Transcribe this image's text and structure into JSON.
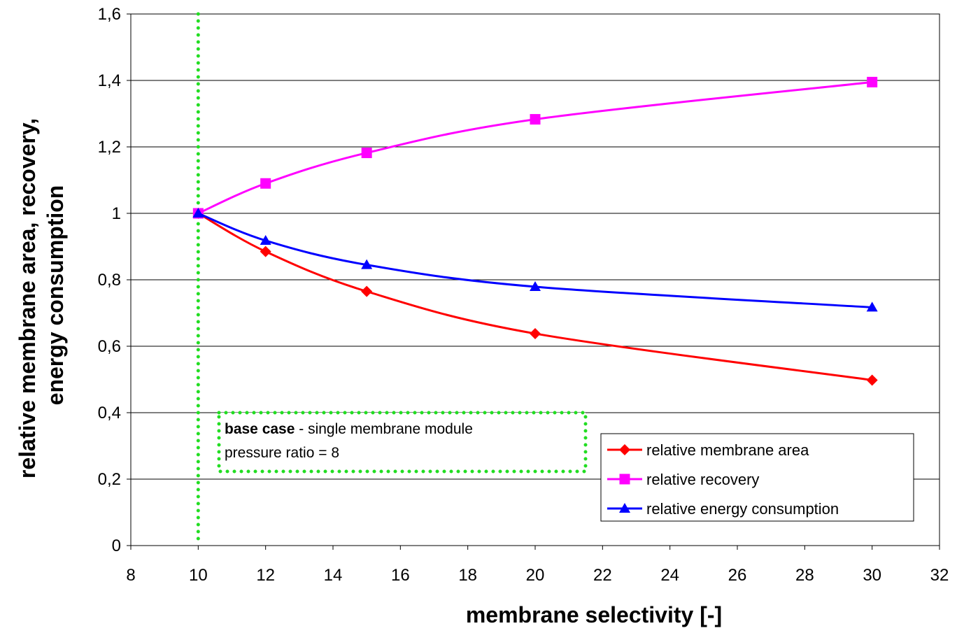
{
  "chart_data": {
    "type": "line",
    "title": "",
    "xlabel": "membrane selectivity [-]",
    "ylabel_lines": [
      "relative membrane area, recovery,",
      "energy consumption"
    ],
    "xlim": [
      8,
      32
    ],
    "ylim": [
      0,
      1.6
    ],
    "x_ticks": [
      "8",
      "10",
      "12",
      "14",
      "16",
      "18",
      "20",
      "22",
      "24",
      "26",
      "28",
      "30",
      "32"
    ],
    "y_ticks": [
      "0",
      "0,2",
      "0,4",
      "0,6",
      "0,8",
      "1",
      "1,2",
      "1,4",
      "1,6"
    ],
    "grid": "horizontal",
    "legend_position": "bottom-right",
    "series": [
      {
        "name": "relative membrane area",
        "color": "#ff0000",
        "marker": "diamond",
        "x": [
          10,
          12,
          15,
          20,
          30
        ],
        "y": [
          1.0,
          0.885,
          0.765,
          0.638,
          0.498
        ]
      },
      {
        "name": "relative recovery",
        "color": "#ff00ff",
        "marker": "square",
        "x": [
          10,
          12,
          15,
          20,
          30
        ],
        "y": [
          1.0,
          1.09,
          1.182,
          1.283,
          1.395
        ]
      },
      {
        "name": "relative energy consumption",
        "color": "#0000ff",
        "marker": "triangle",
        "x": [
          10,
          12,
          15,
          20,
          30
        ],
        "y": [
          1.0,
          0.918,
          0.845,
          0.779,
          0.717
        ]
      }
    ],
    "reference_line": {
      "x": 10,
      "color": "#22dd22"
    },
    "annotation": {
      "bold": "base case",
      "rest": " - single membrane module",
      "line2": "pressure ratio = 8"
    }
  }
}
